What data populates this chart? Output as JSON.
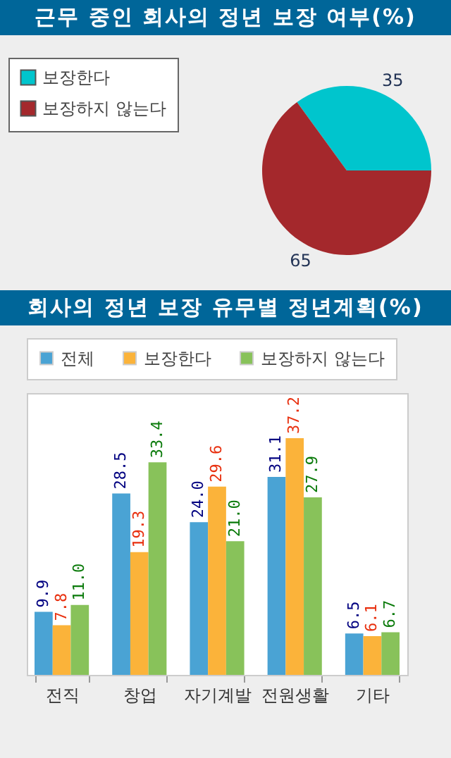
{
  "chart_data": [
    {
      "type": "pie",
      "title": "근무 중인 회사의 정년 보장 여부(%)",
      "categories": [
        "보장한다",
        "보장하지 않는다"
      ],
      "values": [
        35,
        65
      ],
      "colors": [
        "#00c5cd",
        "#a4282c"
      ],
      "data_labels": true,
      "legend": "left"
    },
    {
      "type": "bar",
      "title": "회사의 정년 보장 유무별 정년계획(%)",
      "categories": [
        "전직",
        "창업",
        "자기계발",
        "전원생활",
        "기타"
      ],
      "legend": "top",
      "grid": false,
      "series": [
        {
          "name": "전체",
          "color": "#4aa3d4",
          "values": [
            9.9,
            28.5,
            24.0,
            31.1,
            6.5
          ],
          "value_labels": [
            "9.9",
            "28.5",
            "24.0",
            "31.1",
            "6.5"
          ]
        },
        {
          "name": "보장한다",
          "color": "#fbb33a",
          "values": [
            7.8,
            19.3,
            29.6,
            37.2,
            6.1
          ],
          "value_labels": [
            "7.8",
            "19.3",
            "29.6",
            "37.2",
            "6.1"
          ]
        },
        {
          "name": "보장하지 않는다",
          "color": "#88c25a",
          "values": [
            11.0,
            33.4,
            21.0,
            27.9,
            6.7
          ],
          "value_labels": [
            "11.0",
            "33.4",
            "21.0",
            "27.9",
            "6.7"
          ]
        }
      ]
    }
  ]
}
